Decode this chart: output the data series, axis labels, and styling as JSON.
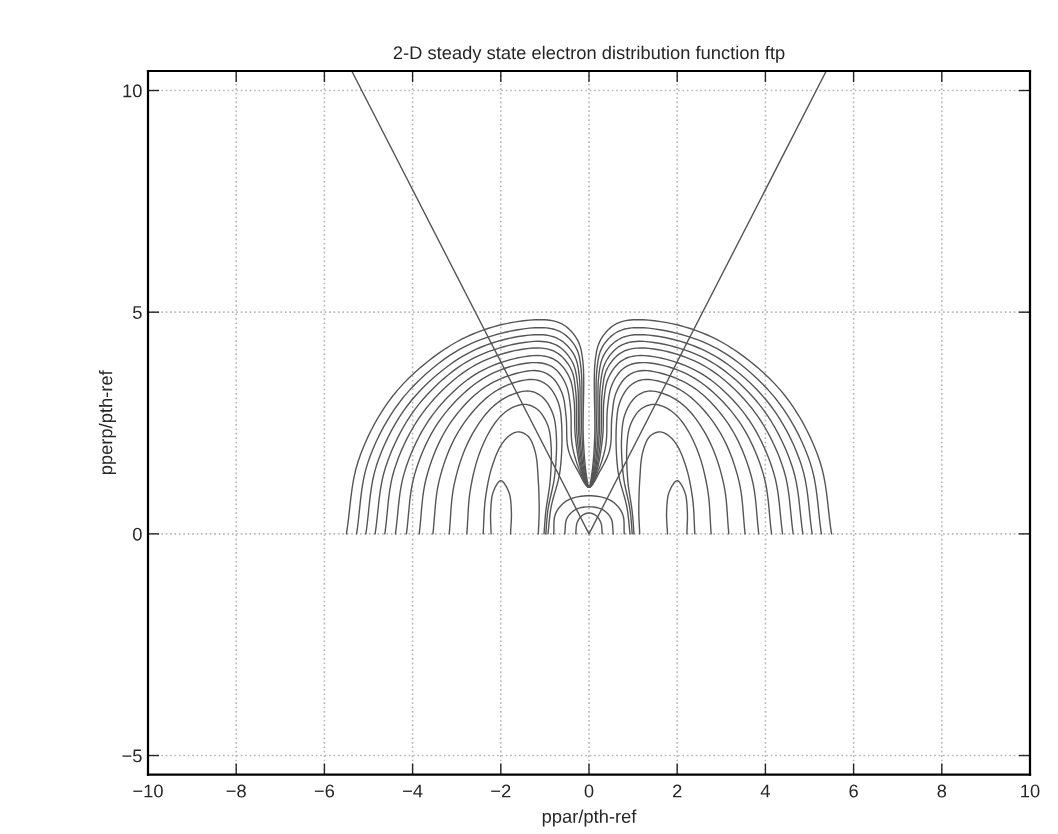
{
  "chart_data": {
    "type": "line",
    "title": "2-D steady state electron distribution function ftp",
    "xlabel": "ppar/pth-ref",
    "ylabel": "pperp/pth-ref",
    "xlim": [
      -10,
      10
    ],
    "xticks": [
      {
        "value": -10,
        "label": "−10"
      },
      {
        "value": -8,
        "label": "−8"
      },
      {
        "value": -6,
        "label": "−6"
      },
      {
        "value": -4,
        "label": "−4"
      },
      {
        "value": -2,
        "label": "−2"
      },
      0,
      2,
      4,
      6,
      8,
      10
    ],
    "ylim": [
      -5.43,
      10.44
    ],
    "yticks": [
      {
        "value": -5,
        "label": "−5"
      },
      0,
      5,
      10
    ],
    "grid": true,
    "line_style": "solid",
    "series": [
      {
        "color": "#555555",
        "x": [
          -5.5,
          -5.23,
          -4.45,
          -3.25,
          -2.17,
          -1.0,
          -0.57,
          -0.26,
          -0.14,
          -0.13,
          -0.07,
          0,
          0.07,
          0.13,
          0.14,
          0.26,
          0.57,
          1.0,
          2.17,
          3.25,
          4.45,
          5.23,
          5.5
        ],
        "values": [
          0,
          1.65,
          3.11,
          4.18,
          4.67,
          4.83,
          4.71,
          4.37,
          3.9,
          2.2,
          1.4,
          1.05,
          1.4,
          2.2,
          3.9,
          4.37,
          4.71,
          4.83,
          4.67,
          4.18,
          3.11,
          1.65,
          0
        ]
      },
      {
        "color": "#555555",
        "x": [
          -5.27,
          -5.02,
          -4.28,
          -3.15,
          -2.12,
          -1.02,
          -0.6,
          -0.29,
          -0.18,
          -0.16,
          -0.09,
          0,
          0.09,
          0.16,
          0.18,
          0.29,
          0.6,
          1.02,
          2.12,
          3.15,
          4.28,
          5.02,
          5.27
        ],
        "values": [
          0,
          1.59,
          2.99,
          4.03,
          4.49,
          4.65,
          4.53,
          4.19,
          3.72,
          2.2,
          1.4,
          1.05,
          1.4,
          2.2,
          3.72,
          4.19,
          4.53,
          4.65,
          4.49,
          4.03,
          2.99,
          1.59,
          0
        ]
      },
      {
        "color": "#555555",
        "x": [
          -5.06,
          -4.82,
          -4.12,
          -3.05,
          -2.08,
          -1.04,
          -0.63,
          -0.33,
          -0.22,
          -0.2,
          -0.11,
          0,
          0.11,
          0.2,
          0.22,
          0.33,
          0.63,
          1.04,
          2.08,
          3.05,
          4.12,
          4.82,
          5.06
        ],
        "values": [
          0,
          1.54,
          2.89,
          3.89,
          4.34,
          4.49,
          4.36,
          4.02,
          3.55,
          2.2,
          1.4,
          1.05,
          1.4,
          2.2,
          3.55,
          4.02,
          4.36,
          4.49,
          4.34,
          3.89,
          2.89,
          1.54,
          0
        ]
      },
      {
        "color": "#555555",
        "x": [
          -4.85,
          -4.62,
          -3.96,
          -2.96,
          -2.04,
          -1.06,
          -0.66,
          -0.37,
          -0.26,
          -0.23,
          -0.13,
          0,
          0.13,
          0.23,
          0.26,
          0.37,
          0.66,
          1.06,
          2.04,
          2.96,
          3.96,
          4.62,
          4.85
        ],
        "values": [
          0,
          1.48,
          2.79,
          3.76,
          4.19,
          4.34,
          4.21,
          3.86,
          3.38,
          2.2,
          1.4,
          1.05,
          1.4,
          2.2,
          3.38,
          3.86,
          4.21,
          4.34,
          4.19,
          3.76,
          2.79,
          1.48,
          0
        ]
      },
      {
        "color": "#555555",
        "x": [
          -4.63,
          -4.42,
          -3.8,
          -2.86,
          -2.0,
          -1.08,
          -0.69,
          -0.4,
          -0.3,
          -0.27,
          -0.15,
          0,
          0.15,
          0.27,
          0.3,
          0.4,
          0.69,
          1.08,
          2.0,
          2.86,
          3.8,
          4.42,
          4.63
        ],
        "values": [
          0,
          1.43,
          2.69,
          3.63,
          4.05,
          4.19,
          4.06,
          3.7,
          3.2,
          2.2,
          1.4,
          1.05,
          1.4,
          2.2,
          3.2,
          3.7,
          4.06,
          4.19,
          4.05,
          3.63,
          2.69,
          1.43,
          0
        ]
      },
      {
        "color": "#555555",
        "x": [
          -4.39,
          -4.19,
          -3.62,
          -2.75,
          -1.95,
          -1.1,
          -0.72,
          -0.44,
          -0.34,
          -0.31,
          -0.17,
          0,
          0.17,
          0.31,
          0.34,
          0.44,
          0.72,
          1.1,
          1.95,
          2.75,
          3.62,
          4.19,
          4.39
        ],
        "values": [
          0,
          1.37,
          2.58,
          3.48,
          3.88,
          4.02,
          3.89,
          3.52,
          3.02,
          2.2,
          1.4,
          1.05,
          1.4,
          2.2,
          3.02,
          3.52,
          3.89,
          4.02,
          3.88,
          3.48,
          2.58,
          1.37,
          0
        ]
      },
      {
        "color": "#555555",
        "x": [
          -4.14,
          -3.96,
          -3.44,
          -2.64,
          -1.92,
          -1.14,
          -0.78,
          -0.52,
          -0.42,
          -0.38,
          -0.2,
          0,
          0.2,
          0.38,
          0.42,
          0.52,
          0.78,
          1.14,
          1.92,
          2.64,
          3.44,
          3.96,
          4.14
        ],
        "values": [
          0,
          1.32,
          2.48,
          3.34,
          3.73,
          3.86,
          3.73,
          3.36,
          2.85,
          2.0,
          1.4,
          1.05,
          1.4,
          2.0,
          2.85,
          3.36,
          3.73,
          3.86,
          3.73,
          3.34,
          2.48,
          1.32,
          0
        ]
      },
      {
        "color": "#555555",
        "x": [
          -3.85,
          -3.69,
          -3.23,
          -2.52,
          -1.87,
          -1.18,
          -0.85,
          -0.61,
          -0.52,
          -0.47,
          -0.24,
          0,
          0.24,
          0.47,
          0.52,
          0.61,
          0.85,
          1.18,
          1.87,
          2.52,
          3.23,
          3.69,
          3.85
        ],
        "values": [
          0,
          1.26,
          2.37,
          3.19,
          3.55,
          3.68,
          3.54,
          3.17,
          2.65,
          1.9,
          1.4,
          1.05,
          1.4,
          1.9,
          2.65,
          3.17,
          3.54,
          3.68,
          3.55,
          3.19,
          2.37,
          1.26,
          0
        ]
      },
      {
        "color": "#555555",
        "x": [
          -3.54,
          -3.4,
          -3.0,
          -2.39,
          -1.84,
          -1.24,
          -0.93,
          -0.7,
          -0.62,
          -0.66,
          -0.86,
          -0.93
        ],
        "values": [
          0,
          1.19,
          2.24,
          3.01,
          3.36,
          3.48,
          3.34,
          2.97,
          2.45,
          1.4,
          0.6,
          0
        ]
      },
      {
        "color": "#555555",
        "x": [
          3.54,
          3.4,
          3.0,
          2.39,
          1.84,
          1.24,
          0.93,
          0.7,
          0.62,
          0.66,
          0.86,
          0.93
        ],
        "values": [
          0,
          1.19,
          2.24,
          3.01,
          3.36,
          3.48,
          3.34,
          2.97,
          2.45,
          1.4,
          0.6,
          0
        ]
      },
      {
        "color": "#555555",
        "x": [
          -3.17,
          -3.06,
          -2.74,
          -2.26,
          -1.82,
          -1.35,
          -1.05,
          -0.82,
          -0.74,
          -0.78,
          -0.93,
          -0.98
        ],
        "values": [
          0,
          1.1,
          2.07,
          2.79,
          3.11,
          3.22,
          3.08,
          2.71,
          2.2,
          1.3,
          0.55,
          0
        ]
      },
      {
        "color": "#555555",
        "x": [
          3.17,
          3.06,
          2.74,
          2.26,
          1.82,
          1.35,
          1.05,
          0.82,
          0.74,
          0.78,
          0.93,
          0.98
        ],
        "values": [
          0,
          1.1,
          2.07,
          2.79,
          3.11,
          3.22,
          3.08,
          2.71,
          2.2,
          1.3,
          0.55,
          0
        ]
      },
      {
        "color": "#555555",
        "x": [
          -2.77,
          -2.69,
          -2.46,
          -2.11,
          -1.79,
          -1.45,
          -1.16,
          -0.94,
          -0.86,
          -0.88,
          -0.98,
          -1.02
        ],
        "values": [
          0,
          1.0,
          1.88,
          2.53,
          2.82,
          2.92,
          2.8,
          2.46,
          2.0,
          1.2,
          0.5,
          0
        ]
      },
      {
        "color": "#555555",
        "x": [
          2.77,
          2.69,
          2.46,
          2.11,
          1.79,
          1.45,
          1.16,
          0.94,
          0.86,
          0.88,
          0.98,
          1.02
        ],
        "values": [
          0,
          1.0,
          1.88,
          2.53,
          2.82,
          2.92,
          2.8,
          2.46,
          2.0,
          1.2,
          0.5,
          0
        ]
      },
      {
        "color": "#555555",
        "x": [
          -2.4,
          -2.35,
          -2.21,
          -2.0,
          -1.8,
          -1.6,
          -1.38,
          -1.22,
          -1.15,
          -1.13,
          -1.15
        ],
        "values": [
          0,
          0.79,
          1.48,
          1.99,
          2.22,
          2.3,
          2.2,
          1.85,
          1.2,
          0.5,
          0
        ]
      },
      {
        "color": "#555555",
        "x": [
          2.4,
          2.35,
          2.21,
          2.0,
          1.8,
          1.6,
          1.38,
          1.22,
          1.15,
          1.13,
          1.15
        ],
        "values": [
          0,
          0.79,
          1.48,
          1.99,
          2.22,
          2.3,
          2.2,
          1.85,
          1.2,
          0.5,
          0
        ]
      },
      {
        "color": "#555555",
        "x": [
          -1.78,
          -1.76,
          -1.82,
          -2.0,
          -2.17,
          -2.23,
          -2.22
        ],
        "values": [
          0,
          0.5,
          0.95,
          1.2,
          0.95,
          0.5,
          0
        ]
      },
      {
        "color": "#555555",
        "x": [
          1.78,
          1.76,
          1.82,
          2.0,
          2.17,
          2.23,
          2.22
        ],
        "values": [
          0,
          0.5,
          0.95,
          1.2,
          0.95,
          0.5,
          0
        ]
      },
      {
        "color": "#555555",
        "x": [
          -0.3,
          -0.27,
          -0.15,
          0,
          0.15,
          0.27,
          0.3
        ],
        "values": [
          0,
          0.25,
          0.42,
          0.47,
          0.42,
          0.25,
          0
        ]
      },
      {
        "color": "#555555",
        "x": [
          -0.55,
          -0.5,
          -0.3,
          0,
          0.3,
          0.5,
          0.55
        ],
        "values": [
          0,
          0.35,
          0.55,
          0.61,
          0.55,
          0.35,
          0
        ]
      },
      {
        "color": "#555555",
        "x": [
          -0.8,
          -0.76,
          -0.5,
          0,
          0.5,
          0.76,
          0.8
        ],
        "values": [
          0,
          0.45,
          0.75,
          0.86,
          0.75,
          0.45,
          0
        ]
      },
      {
        "color": "#555555",
        "x": [
          0,
          -5.38
        ],
        "values": [
          0,
          10.44
        ]
      },
      {
        "color": "#555555",
        "x": [
          0,
          5.38
        ],
        "values": [
          0,
          10.44
        ]
      }
    ]
  }
}
